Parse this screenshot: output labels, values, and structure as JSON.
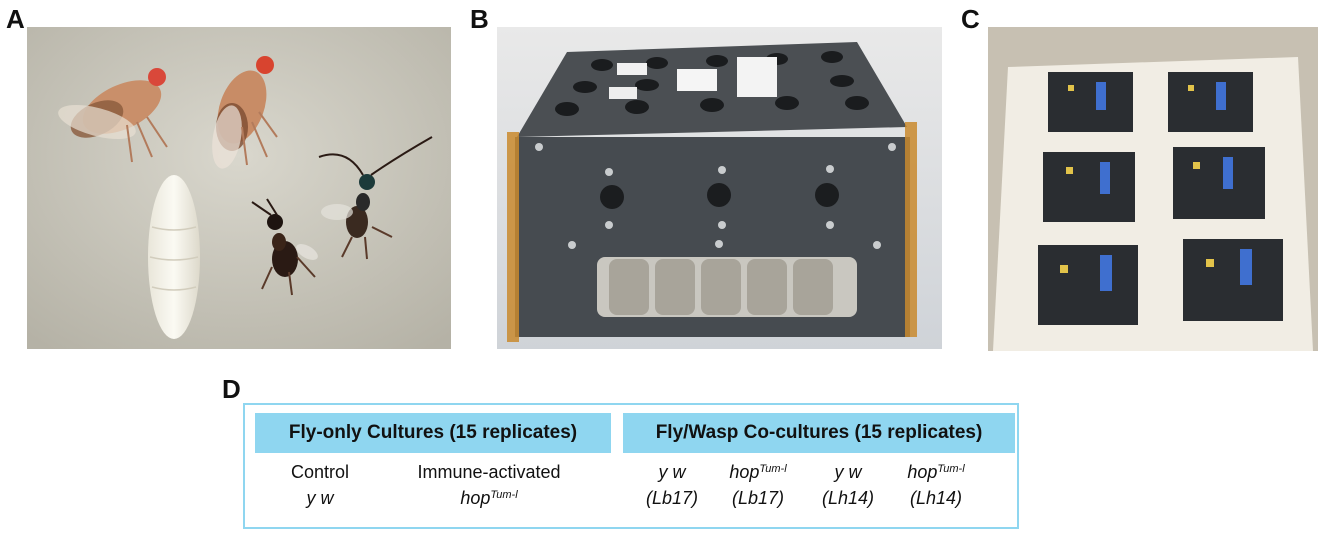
{
  "panels": {
    "a": {
      "label": "A"
    },
    "b": {
      "label": "B"
    },
    "c": {
      "label": "C"
    },
    "d": {
      "label": "D"
    }
  },
  "table": {
    "fly_only_header": "Fly-only Cultures (15 replicates)",
    "cocultures_header": "Fly/Wasp Co-cultures (15 replicates)",
    "fly_only": [
      {
        "line1": "Control",
        "line2_base": "y w",
        "line2_sup": ""
      },
      {
        "line1": "Immune-activated",
        "line2_base": "hop",
        "line2_sup": "Tum-l"
      }
    ],
    "cocultures": [
      {
        "base": "y w",
        "sup": "",
        "strain": "(Lb17)"
      },
      {
        "base": "hop",
        "sup": "Tum-l",
        "strain": "(Lb17)"
      },
      {
        "base": "y w",
        "sup": "",
        "strain": "(Lh14)"
      },
      {
        "base": "hop",
        "sup": "Tum-l",
        "strain": "(Lh14)"
      }
    ]
  },
  "colors": {
    "header_fill": "#8fd6f0",
    "box_border": "#8fd6f0"
  }
}
